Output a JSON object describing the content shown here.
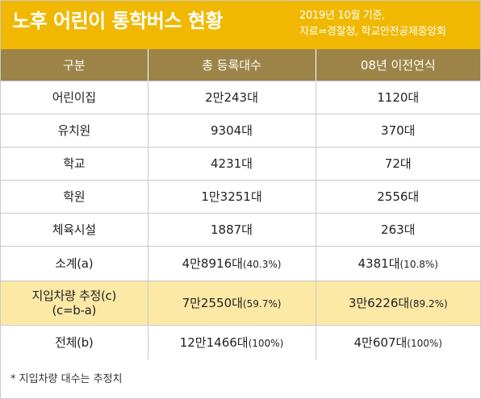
{
  "header": {
    "title": "노후 어린이 통학버스 현황",
    "note_line1": "2019년 10월 기준,",
    "note_line2": "자료=경찰청, 학교안전공제중앙회"
  },
  "table": {
    "columns": [
      "구분",
      "총 등록대수",
      "08년 이전연식"
    ],
    "rows": [
      {
        "label": "어린이집",
        "total": "2만243대",
        "total_pct": "",
        "old": "1120대",
        "old_pct": ""
      },
      {
        "label": "유치원",
        "total": "9304대",
        "total_pct": "",
        "old": "370대",
        "old_pct": ""
      },
      {
        "label": "학교",
        "total": "4231대",
        "total_pct": "",
        "old": "72대",
        "old_pct": ""
      },
      {
        "label": "학원",
        "total": "1만3251대",
        "total_pct": "",
        "old": "2556대",
        "old_pct": ""
      },
      {
        "label": "체육시설",
        "total": "1887대",
        "total_pct": "",
        "old": "263대",
        "old_pct": ""
      },
      {
        "label": "소계(a)",
        "total": "4만8916대",
        "total_pct": "(40.3%)",
        "old": "4381대",
        "old_pct": "(10.8%)"
      },
      {
        "label": "지입차량 추정(c)",
        "label2": "(c=b-a)",
        "total": "7만2550대",
        "total_pct": "(59.7%)",
        "old": "3만6226대",
        "old_pct": "(89.2%)"
      },
      {
        "label": "전체(b)",
        "total": "12만1466대",
        "total_pct": "(100%)",
        "old": "4만607대",
        "old_pct": "(100%)"
      }
    ]
  },
  "footnote": "* 지입차량 대수는 추정치",
  "colors": {
    "header_bg": "#f0b800",
    "column_header_bg": "#9c8448",
    "highlight_row_bg": "#fde9a6"
  }
}
